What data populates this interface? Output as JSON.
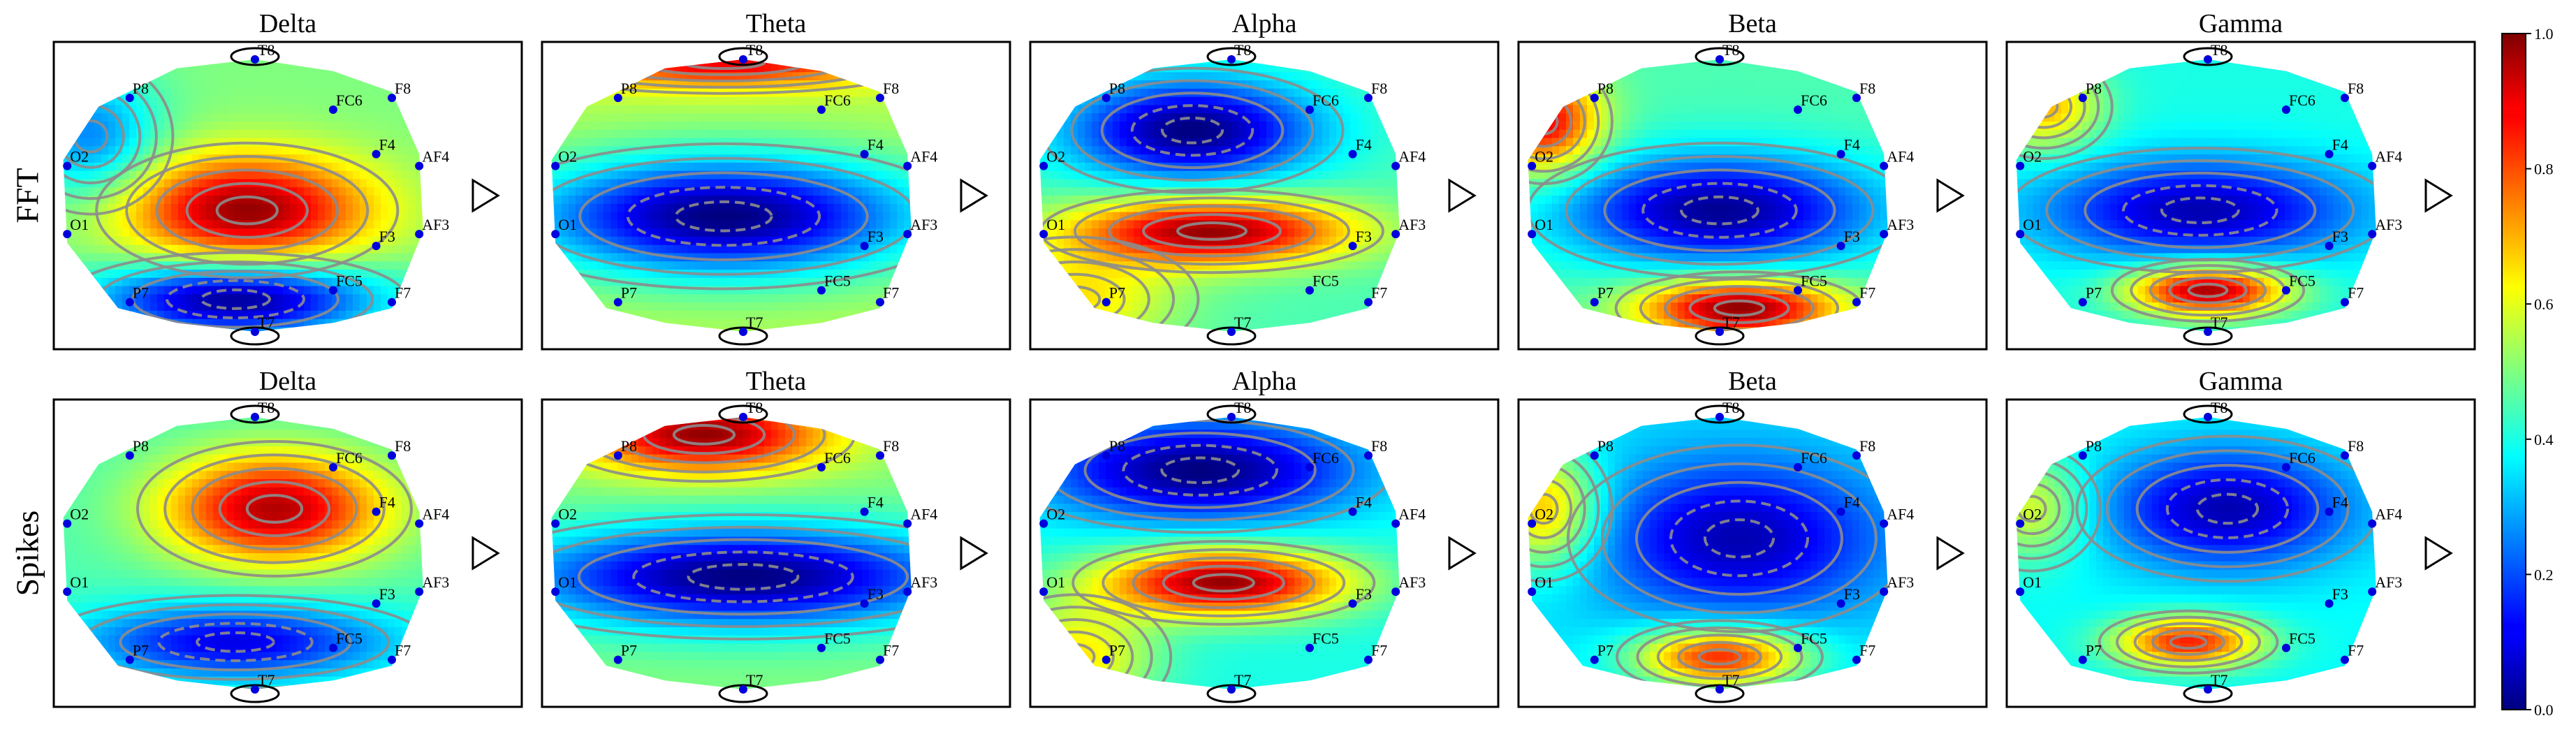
{
  "chart_data": {
    "type": "heatmap",
    "description_rows": [
      "FFT",
      "Spikes"
    ],
    "columns": [
      "Delta",
      "Theta",
      "Alpha",
      "Beta",
      "Gamma"
    ],
    "colorbar": {
      "min": 0.0,
      "max": 1.0,
      "ticks": [
        "0.0",
        "0.2",
        "0.4",
        "0.6",
        "0.8",
        "1.0"
      ],
      "colormap": "jet"
    },
    "electrodes": [
      {
        "name": "T8",
        "u": 0.5,
        "v": 0.04
      },
      {
        "name": "P8",
        "u": 0.18,
        "v": 0.17
      },
      {
        "name": "FC6",
        "u": 0.7,
        "v": 0.21
      },
      {
        "name": "F8",
        "u": 0.85,
        "v": 0.17
      },
      {
        "name": "F4",
        "u": 0.81,
        "v": 0.36
      },
      {
        "name": "AF4",
        "u": 0.92,
        "v": 0.4
      },
      {
        "name": "O2",
        "u": 0.02,
        "v": 0.4
      },
      {
        "name": "O1",
        "u": 0.02,
        "v": 0.63
      },
      {
        "name": "F3",
        "u": 0.81,
        "v": 0.67
      },
      {
        "name": "AF3",
        "u": 0.92,
        "v": 0.63
      },
      {
        "name": "P7",
        "u": 0.18,
        "v": 0.86
      },
      {
        "name": "FC5",
        "u": 0.7,
        "v": 0.82
      },
      {
        "name": "F7",
        "u": 0.85,
        "v": 0.86
      },
      {
        "name": "T7",
        "u": 0.5,
        "v": 0.96
      }
    ],
    "panels": [
      {
        "row": "FFT",
        "band": "Delta",
        "peaks": [
          {
            "u": 0.48,
            "v": 0.55,
            "val": 0.98,
            "sx": 0.22,
            "sy": 0.13
          },
          {
            "u": 0.45,
            "v": 0.85,
            "val": 0.0,
            "sx": 0.25,
            "sy": 0.09
          },
          {
            "u": 0.08,
            "v": 0.3,
            "val": 0.25,
            "sx": 0.12,
            "sy": 0.15
          }
        ],
        "base": 0.5
      },
      {
        "row": "FFT",
        "band": "Theta",
        "peaks": [
          {
            "u": 0.45,
            "v": 0.57,
            "val": 0.0,
            "sx": 0.35,
            "sy": 0.14
          },
          {
            "u": 0.45,
            "v": 0.05,
            "val": 0.9,
            "sx": 0.3,
            "sy": 0.06
          }
        ],
        "base": 0.55
      },
      {
        "row": "FFT",
        "band": "Alpha",
        "peaks": [
          {
            "u": 0.4,
            "v": 0.28,
            "val": 0.0,
            "sx": 0.22,
            "sy": 0.12
          },
          {
            "u": 0.45,
            "v": 0.62,
            "val": 0.98,
            "sx": 0.25,
            "sy": 0.08
          },
          {
            "u": 0.1,
            "v": 0.85,
            "val": 0.65,
            "sx": 0.18,
            "sy": 0.12
          }
        ],
        "base": 0.45
      },
      {
        "row": "FFT",
        "band": "Beta",
        "peaks": [
          {
            "u": 0.5,
            "v": 0.55,
            "val": 0.02,
            "sx": 0.28,
            "sy": 0.13
          },
          {
            "u": 0.55,
            "v": 0.88,
            "val": 1.0,
            "sx": 0.18,
            "sy": 0.07
          },
          {
            "u": 0.05,
            "v": 0.25,
            "val": 0.9,
            "sx": 0.1,
            "sy": 0.12
          }
        ],
        "base": 0.45
      },
      {
        "row": "FFT",
        "band": "Gamma",
        "peaks": [
          {
            "u": 0.48,
            "v": 0.55,
            "val": 0.05,
            "sx": 0.28,
            "sy": 0.12
          },
          {
            "u": 0.5,
            "v": 0.82,
            "val": 0.98,
            "sx": 0.14,
            "sy": 0.06
          },
          {
            "u": 0.08,
            "v": 0.2,
            "val": 0.7,
            "sx": 0.1,
            "sy": 0.1
          }
        ],
        "base": 0.4
      },
      {
        "row": "Spikes",
        "band": "Delta",
        "peaks": [
          {
            "u": 0.55,
            "v": 0.35,
            "val": 0.95,
            "sx": 0.2,
            "sy": 0.13
          },
          {
            "u": 0.45,
            "v": 0.8,
            "val": 0.1,
            "sx": 0.28,
            "sy": 0.09
          }
        ],
        "base": 0.45
      },
      {
        "row": "Spikes",
        "band": "Theta",
        "peaks": [
          {
            "u": 0.4,
            "v": 0.1,
            "val": 0.98,
            "sx": 0.22,
            "sy": 0.09
          },
          {
            "u": 0.5,
            "v": 0.58,
            "val": 0.0,
            "sx": 0.4,
            "sy": 0.12
          }
        ],
        "base": 0.5
      },
      {
        "row": "Spikes",
        "band": "Alpha",
        "peaks": [
          {
            "u": 0.42,
            "v": 0.22,
            "val": 0.0,
            "sx": 0.28,
            "sy": 0.12
          },
          {
            "u": 0.48,
            "v": 0.6,
            "val": 0.98,
            "sx": 0.22,
            "sy": 0.08
          },
          {
            "u": 0.1,
            "v": 0.85,
            "val": 0.65,
            "sx": 0.14,
            "sy": 0.12
          }
        ],
        "base": 0.4
      },
      {
        "row": "Spikes",
        "band": "Beta",
        "peaks": [
          {
            "u": 0.55,
            "v": 0.45,
            "val": 0.05,
            "sx": 0.25,
            "sy": 0.18
          },
          {
            "u": 0.5,
            "v": 0.85,
            "val": 0.85,
            "sx": 0.15,
            "sy": 0.07
          },
          {
            "u": 0.05,
            "v": 0.35,
            "val": 0.7,
            "sx": 0.1,
            "sy": 0.14
          }
        ],
        "base": 0.35
      },
      {
        "row": "Spikes",
        "band": "Gamma",
        "peaks": [
          {
            "u": 0.55,
            "v": 0.35,
            "val": 0.05,
            "sx": 0.22,
            "sy": 0.14
          },
          {
            "u": 0.45,
            "v": 0.8,
            "val": 0.85,
            "sx": 0.13,
            "sy": 0.06
          },
          {
            "u": 0.05,
            "v": 0.35,
            "val": 0.6,
            "sx": 0.1,
            "sy": 0.12
          }
        ],
        "base": 0.38
      }
    ]
  }
}
